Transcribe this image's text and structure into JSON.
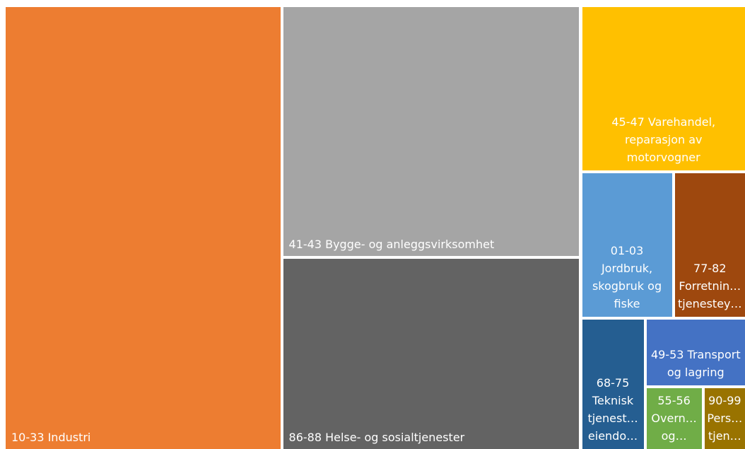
{
  "chart_data": {
    "type": "treemap",
    "labels": [
      [
        "10-33 Industri"
      ],
      [
        "41-43 Bygge- og anleggsvirksomhet"
      ],
      [
        "86-88 Helse- og sosialtjenester"
      ],
      [
        "45-47 Varehandel,",
        "reparasjon av",
        "motorvogner"
      ],
      [
        "01-03",
        "Jordbruk,",
        "skogbruk og",
        "fiske"
      ],
      [
        "77-82",
        "Forretnin…",
        "tjenestey…"
      ],
      [
        "68-75",
        "Teknisk",
        "tjenest…",
        "eiendo…"
      ],
      [
        "49-53 Transport",
        "og lagring"
      ],
      [
        "55-56",
        "Overn…",
        "og…"
      ],
      [
        "90-99",
        "Pers…",
        "tjen…"
      ]
    ],
    "values": [
      236875,
      144261,
      110970,
      52891,
      25984,
      20503,
      16356,
      13348,
      7110,
      5310
    ],
    "colors": [
      "#ed7d31",
      "#a5a5a5",
      "#636363",
      "#ffc000",
      "#5b9bd5",
      "#9e480e",
      "#255e91",
      "#4472c4",
      "#70ad47",
      "#997300"
    ]
  }
}
